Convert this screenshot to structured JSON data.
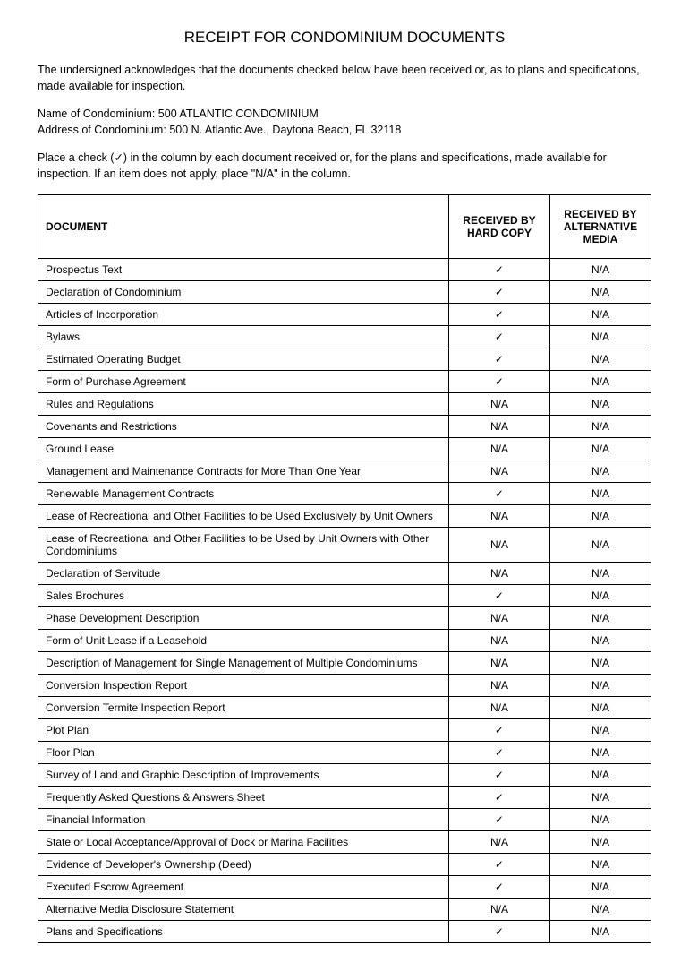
{
  "title": "RECEIPT FOR CONDOMINIUM DOCUMENTS",
  "intro": "The undersigned acknowledges that the documents checked below have been received or, as to plans and specifications, made available for inspection.",
  "condo_name_label": "Name of Condominium:",
  "condo_name": "500 ATLANTIC CONDOMINIUM",
  "condo_addr_label": "Address of Condominium:",
  "condo_addr": "500 N. Atlantic Ave., Daytona Beach, FL 32118",
  "instruction": "Place a check (✓) in the column by each document received or, for the plans and specifications, made available for inspection.   If an item does not apply, place \"N/A\" in the column.",
  "check_glyph": "✓",
  "table": {
    "columns": [
      "DOCUMENT",
      "RECEIVED BY HARD COPY",
      "RECEIVED BY ALTERNATIVE MEDIA"
    ],
    "rows": [
      {
        "doc": "Prospectus Text",
        "hard": "check",
        "alt": "N/A"
      },
      {
        "doc": "Declaration of Condominium",
        "hard": "check",
        "alt": "N/A"
      },
      {
        "doc": "Articles of Incorporation",
        "hard": "check",
        "alt": "N/A"
      },
      {
        "doc": "Bylaws",
        "hard": "check",
        "alt": "N/A"
      },
      {
        "doc": "Estimated Operating Budget",
        "hard": "check",
        "alt": "N/A"
      },
      {
        "doc": "Form of Purchase Agreement",
        "hard": "check",
        "alt": "N/A"
      },
      {
        "doc": "Rules and Regulations",
        "hard": "N/A",
        "alt": "N/A"
      },
      {
        "doc": "Covenants and Restrictions",
        "hard": "N/A",
        "alt": "N/A"
      },
      {
        "doc": "Ground Lease",
        "hard": "N/A",
        "alt": "N/A"
      },
      {
        "doc": "Management and Maintenance Contracts for More Than One Year",
        "hard": "N/A",
        "alt": "N/A"
      },
      {
        "doc": "Renewable Management Contracts",
        "hard": "check",
        "alt": "N/A"
      },
      {
        "doc": "Lease of Recreational and Other Facilities to be Used Exclusively by Unit Owners",
        "hard": "N/A",
        "alt": "N/A"
      },
      {
        "doc": "Lease of Recreational and Other Facilities to be Used by Unit Owners with Other Condominiums",
        "hard": "N/A",
        "alt": "N/A"
      },
      {
        "doc": "Declaration of Servitude",
        "hard": "N/A",
        "alt": "N/A"
      },
      {
        "doc": "Sales Brochures",
        "hard": "check",
        "alt": "N/A"
      },
      {
        "doc": "Phase Development Description",
        "hard": "N/A",
        "alt": "N/A"
      },
      {
        "doc": "Form of Unit Lease if a Leasehold",
        "hard": "N/A",
        "alt": "N/A"
      },
      {
        "doc": "Description of Management for Single Management of Multiple Condominiums",
        "hard": "N/A",
        "alt": "N/A"
      },
      {
        "doc": "Conversion Inspection Report",
        "hard": "N/A",
        "alt": "N/A"
      },
      {
        "doc": "Conversion Termite Inspection Report",
        "hard": "N/A",
        "alt": "N/A"
      },
      {
        "doc": "Plot Plan",
        "hard": "check",
        "alt": "N/A"
      },
      {
        "doc": "Floor Plan",
        "hard": "check",
        "alt": "N/A"
      },
      {
        "doc": "Survey of Land and Graphic Description of Improvements",
        "hard": "check",
        "alt": "N/A"
      },
      {
        "doc": "Frequently Asked Questions & Answers Sheet",
        "hard": "check",
        "alt": "N/A"
      },
      {
        "doc": "Financial Information",
        "hard": "check",
        "alt": "N/A"
      },
      {
        "doc": "State or Local Acceptance/Approval of Dock or Marina Facilities",
        "hard": "N/A",
        "alt": "N/A"
      },
      {
        "doc": "Evidence of Developer's Ownership (Deed)",
        "hard": "check",
        "alt": "N/A"
      },
      {
        "doc": "Executed Escrow Agreement",
        "hard": "check",
        "alt": "N/A"
      },
      {
        "doc": "Alternative Media Disclosure Statement",
        "hard": "N/A",
        "alt": "N/A"
      },
      {
        "doc": "Plans and Specifications",
        "hard": "check",
        "alt": "N/A"
      }
    ]
  }
}
